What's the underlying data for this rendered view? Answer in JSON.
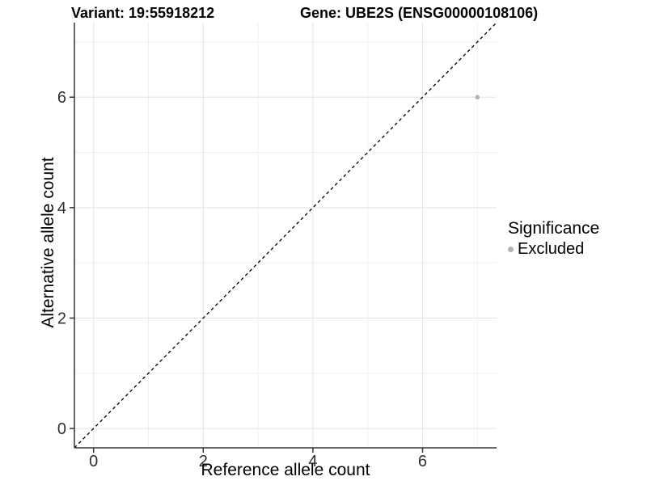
{
  "header": {
    "variant_title": "Variant: 19:55918212",
    "gene_title": "Gene: UBE2S (ENSG00000108106)"
  },
  "axes": {
    "x_label": "Reference allele count",
    "y_label": "Alternative allele count"
  },
  "legend": {
    "title": "Significance",
    "items": [
      {
        "label": "Excluded",
        "color": "#b3b3b3"
      }
    ]
  },
  "chart_data": {
    "type": "scatter",
    "title": "Variant: 19:55918212 — Gene: UBE2S (ENSG00000108106)",
    "xlabel": "Reference allele count",
    "ylabel": "Alternative allele count",
    "xlim": [
      -0.35,
      7.35
    ],
    "ylim": [
      -0.35,
      7.35
    ],
    "x_ticks": [
      0,
      2,
      4,
      6
    ],
    "y_ticks": [
      0,
      2,
      4,
      6
    ],
    "minor_ticks": [
      1,
      3,
      5,
      7
    ],
    "grid": "major+minor",
    "legend_position": "right",
    "series": [
      {
        "name": "Excluded",
        "color": "#b3b3b3",
        "point_radius": 2.8,
        "points": [
          [
            7,
            6
          ]
        ]
      }
    ],
    "reference_line": {
      "meaning": "identity y=x",
      "style": "dashed",
      "color": "#000000",
      "from": [
        -0.35,
        -0.35
      ],
      "to": [
        7.35,
        7.35
      ]
    }
  },
  "style": {
    "background": "#ffffff",
    "grid_major_color": "#e3e3e3",
    "grid_minor_color": "#f0f0f0",
    "axis_line_color": "#333333",
    "tick_label_color": "#303030",
    "point_color": "#b3b3b3"
  }
}
